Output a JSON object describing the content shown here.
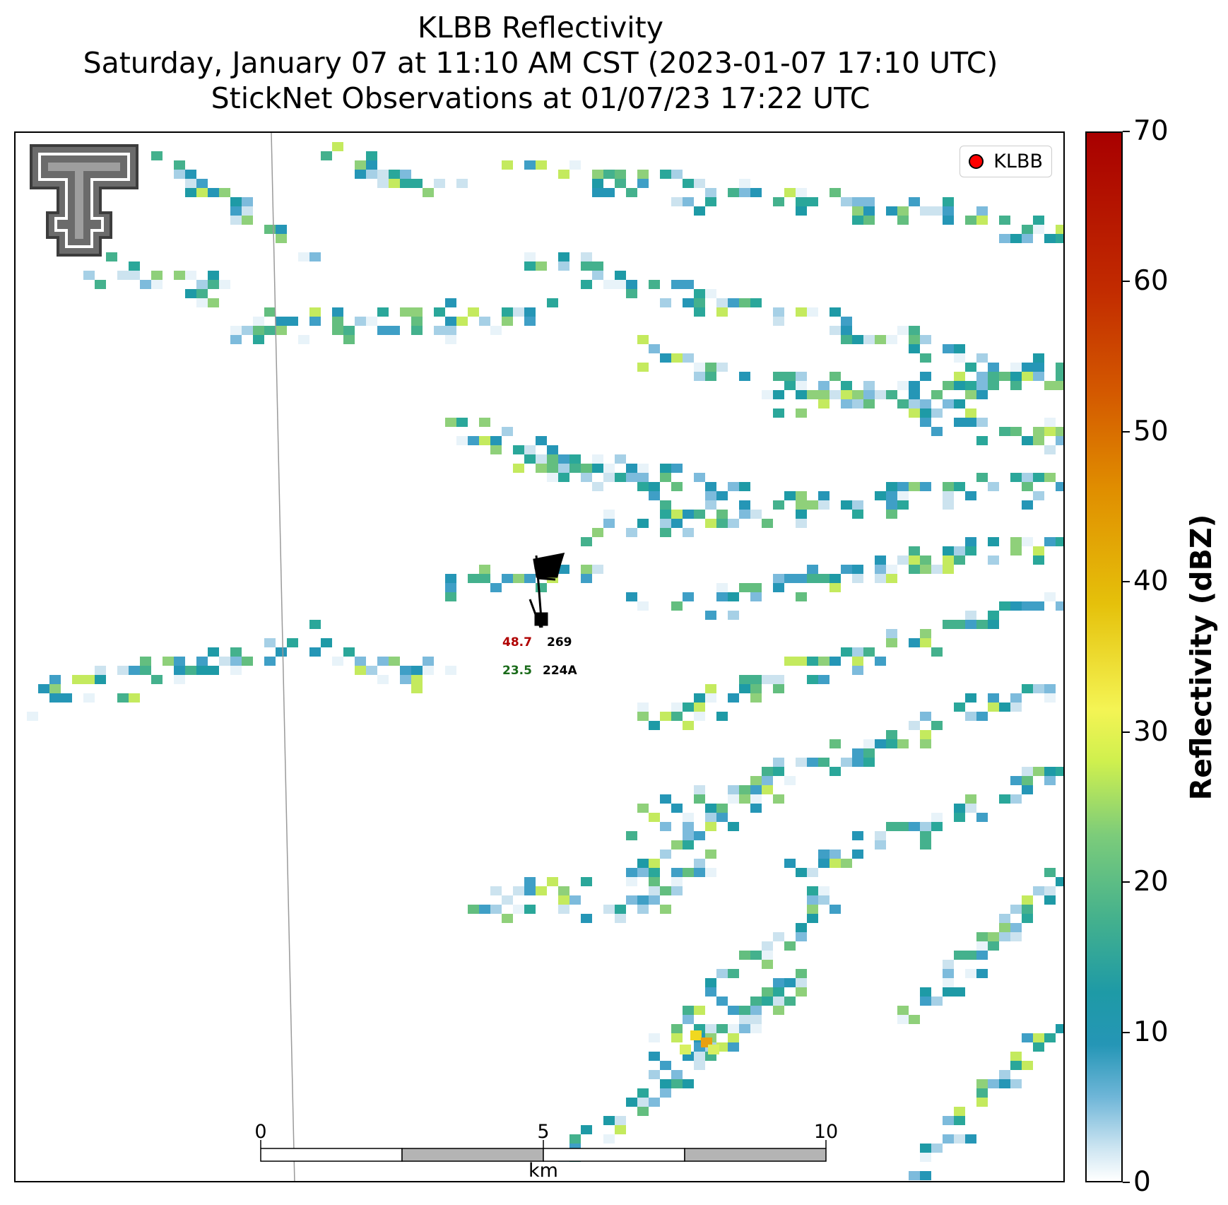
{
  "title": {
    "line1": "KLBB Reflectivity",
    "line2": "Saturday, January 07 at 11:10 AM CST (2023-01-07 17:10 UTC)",
    "line3": "StickNet Observations at 01/07/23 17:22 UTC"
  },
  "legend": {
    "label": "KLBB",
    "marker_color": "#ff0000"
  },
  "logo": {
    "icon": "texas-tech-double-t-logo",
    "color": "#666666"
  },
  "colorbar": {
    "label": "Reflectivity (dBZ)",
    "ticks": [
      "0",
      "10",
      "20",
      "30",
      "40",
      "50",
      "60",
      "70"
    ],
    "range": [
      0,
      70
    ]
  },
  "scalebar": {
    "unit": "km",
    "ticks": [
      "0",
      "5",
      "10"
    ]
  },
  "station": {
    "id_top": "269",
    "id_bottom": "224A",
    "temperature": "48.7",
    "dewpoint": "23.5",
    "temperature_color": "#b00000",
    "dewpoint_color": "#1a6b1a"
  }
}
